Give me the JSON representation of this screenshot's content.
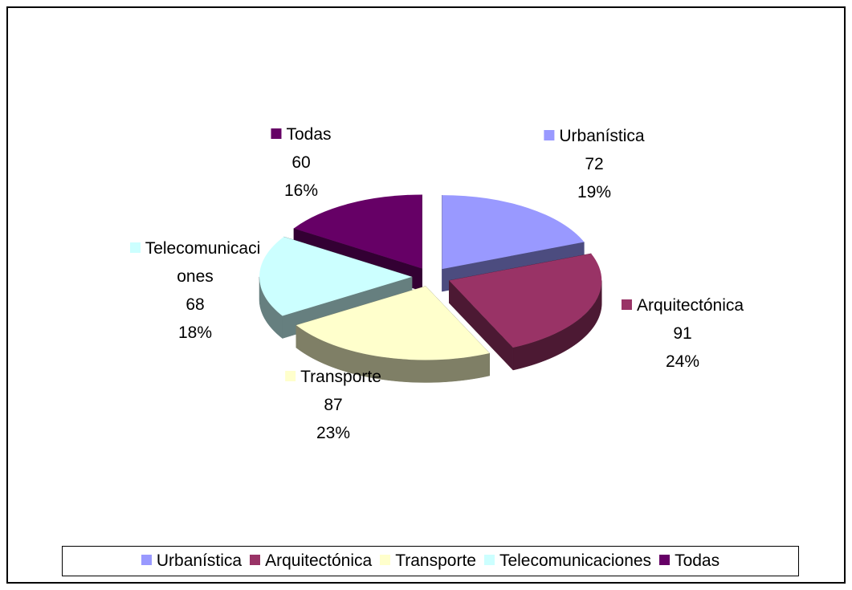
{
  "chart_data": {
    "type": "pie3d",
    "categories": [
      "Urbanística",
      "Arquitectónica",
      "Transporte",
      "Telecomunicaciones",
      "Todas"
    ],
    "values": [
      72,
      91,
      87,
      68,
      60
    ],
    "percentages": [
      19,
      24,
      23,
      18,
      16
    ],
    "percentage_labels": [
      "19%",
      "24%",
      "23%",
      "18%",
      "16%"
    ],
    "colors": [
      "#9999ff",
      "#993366",
      "#ffffcc",
      "#ccffff",
      "#660066"
    ],
    "exploded": true,
    "legend": "bottom"
  }
}
